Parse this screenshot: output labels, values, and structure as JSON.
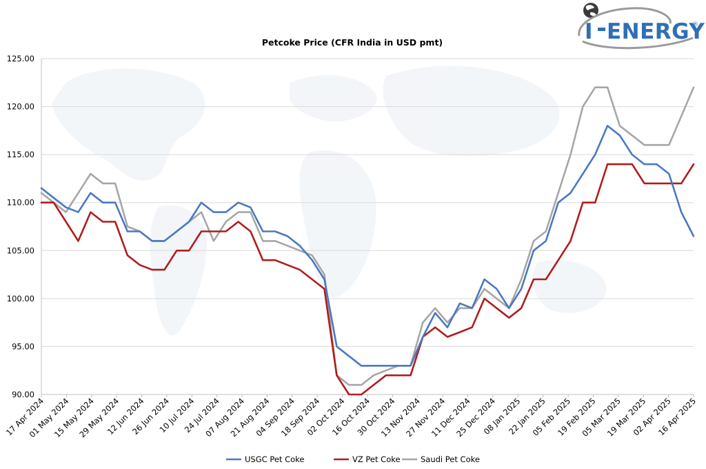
{
  "brand": {
    "logo_text": "ENERGY",
    "logo_prefix": "I",
    "reg_mark": "®"
  },
  "chart_data": {
    "type": "line",
    "title": "Petcoke Price (CFR India in USD pmt)",
    "xlabel": "",
    "ylabel": "",
    "ylim": [
      90,
      125
    ],
    "yticks": [
      "90.00",
      "95.00",
      "100.00",
      "105.00",
      "110.00",
      "115.00",
      "120.00",
      "125.00"
    ],
    "grid": true,
    "legend_position": "bottom",
    "tick_labels": [
      "17 Apr 2024",
      "01 May 2024",
      "15 May 2024",
      "29 May 2024",
      "12 Jun 2024",
      "26 Jun 2024",
      "10 Jul 2024",
      "24 Jul 2024",
      "07 Aug 2024",
      "21 Aug 2024",
      "04 Sep 2024",
      "18 Sep 2024",
      "02 Oct 2024",
      "16 Oct 2024",
      "30 Oct 2024",
      "13 Nov 2024",
      "27 Nov 2024",
      "11 Dec 2024",
      "25 Dec 2024",
      "08 Jan 2025",
      "22 Jan 2025",
      "05 Feb 2025",
      "19 Feb 2025",
      "05 Mar 2025",
      "19 Mar 2025",
      "02 Apr 2025",
      "16 Apr 2025"
    ],
    "series": [
      {
        "name": "USGC Pet Coke",
        "color": "#4a78c2",
        "values": [
          111.5,
          110.5,
          109.5,
          109,
          111,
          110,
          110,
          107,
          107,
          106,
          106,
          107,
          108,
          110,
          109,
          109,
          110,
          109.5,
          107,
          107,
          106.5,
          105.5,
          104,
          102,
          95,
          94,
          93,
          93,
          93,
          93,
          93,
          96,
          98.5,
          97,
          99.5,
          99,
          102,
          101,
          99,
          101,
          105,
          106,
          110,
          111,
          113,
          115,
          118,
          117,
          115,
          114,
          114,
          113,
          109,
          106.5
        ]
      },
      {
        "name": "VZ Pet Coke",
        "color": "#b01c1c",
        "values": [
          110,
          110,
          108,
          106,
          109,
          108,
          108,
          104.5,
          103.5,
          103,
          103,
          105,
          105,
          107,
          107,
          107,
          108,
          107,
          104,
          104,
          103.5,
          103,
          102,
          101,
          92,
          90,
          90,
          91,
          92,
          92,
          92,
          96,
          97,
          96,
          96.5,
          97,
          100,
          99,
          98,
          99,
          102,
          102,
          104,
          106,
          110,
          110,
          114,
          114,
          114,
          112,
          112,
          112,
          112,
          114
        ]
      },
      {
        "name": "Saudi Pet Coke",
        "color": "#a6a6a6",
        "values": [
          111,
          110,
          109,
          111,
          113,
          112,
          112,
          107.5,
          107,
          106,
          106,
          107,
          108,
          109,
          106,
          108,
          109,
          109,
          106,
          106,
          105.5,
          105,
          104.5,
          102.5,
          92,
          91,
          91,
          92,
          92.5,
          93,
          93,
          97.5,
          99,
          97.5,
          99,
          99,
          101,
          100,
          99,
          102,
          106,
          107,
          111,
          115,
          120,
          122,
          122,
          118,
          117,
          116,
          116,
          116,
          119,
          122
        ]
      }
    ]
  }
}
